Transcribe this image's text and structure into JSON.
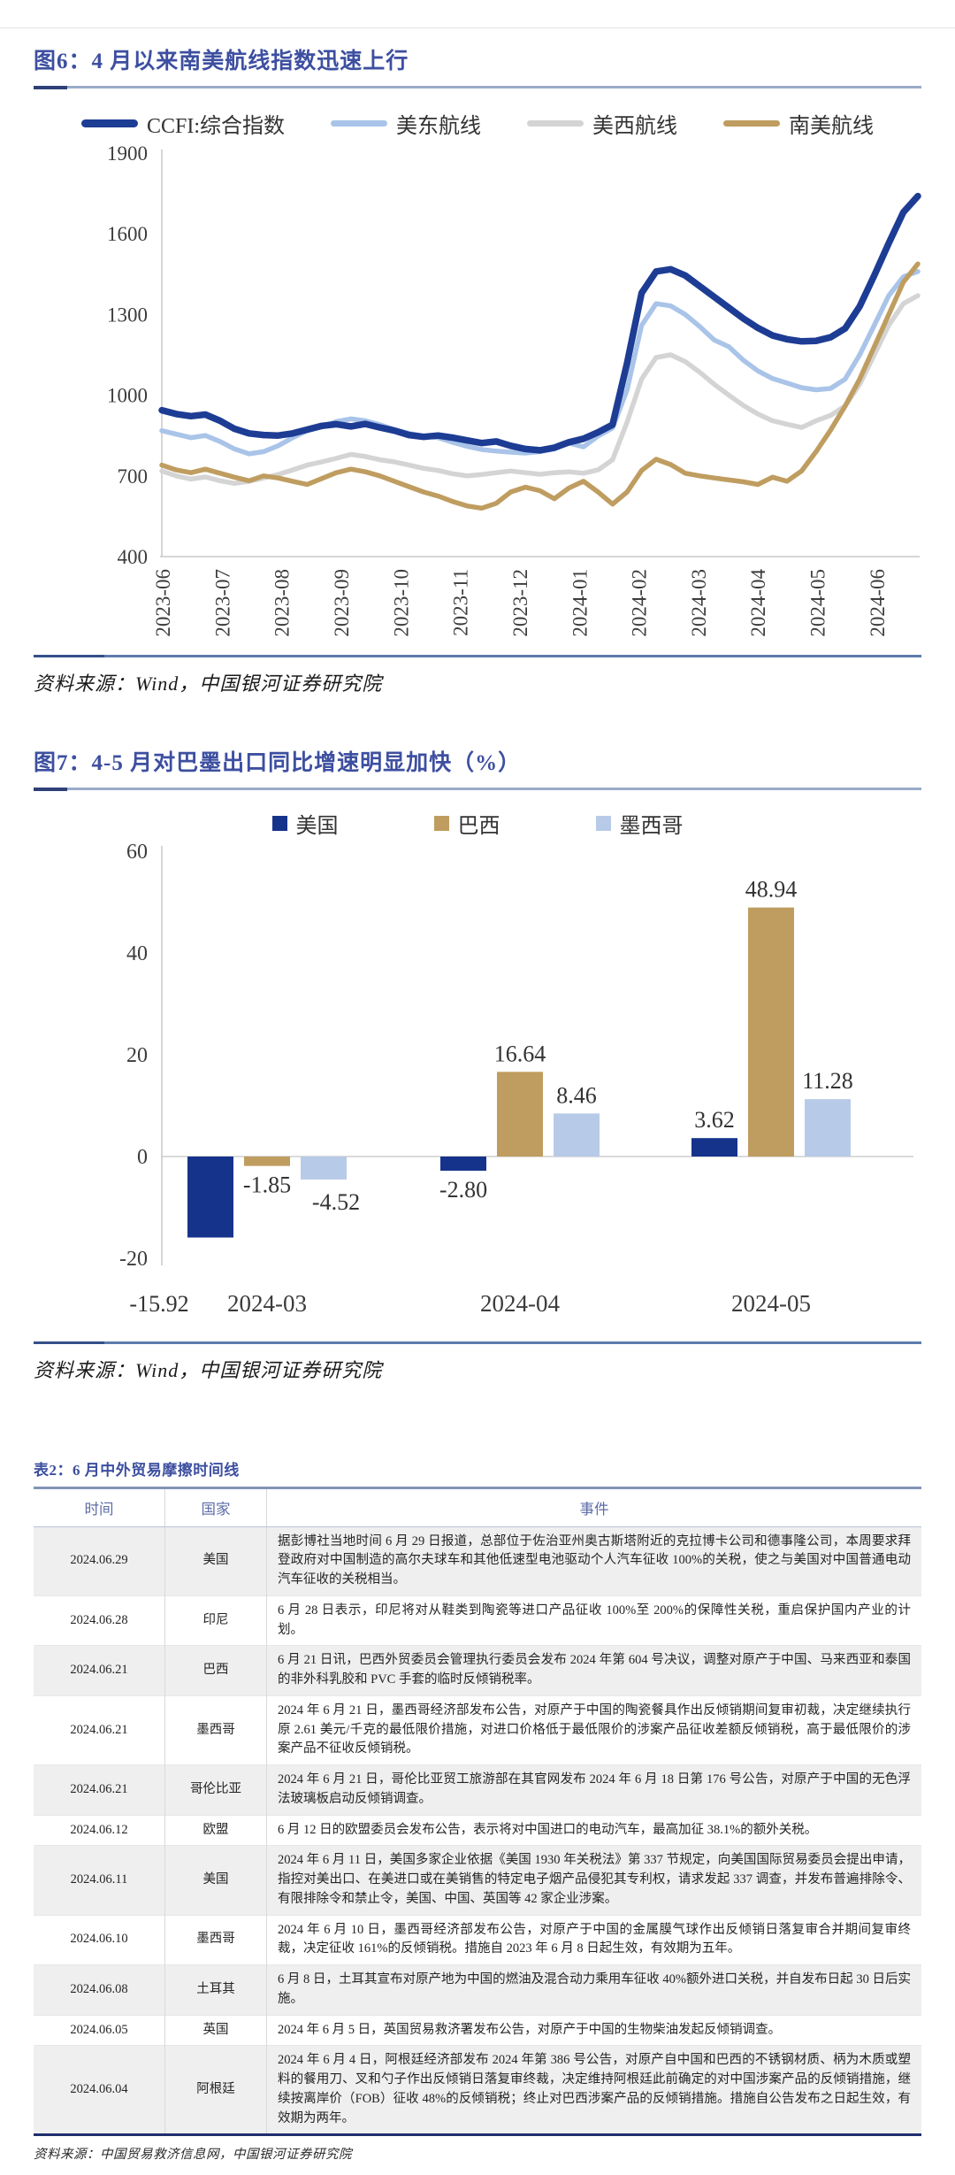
{
  "page": {
    "source_wind": "资料来源：Wind，中国银河证券研究院",
    "source_table": "资料来源：中国贸易救济信息网，中国银河证券研究院"
  },
  "chart_data": [
    {
      "type": "line",
      "title": "图6：4 月以来南美航线指数迅速上行",
      "x_tick_labels": [
        "2023-06",
        "2023-07",
        "2023-08",
        "2023-09",
        "2023-10",
        "2023-11",
        "2023-12",
        "2024-01",
        "2024-02",
        "2024-03",
        "2024-04",
        "2024-05",
        "2024-06"
      ],
      "x_axis_span_months": 12.7,
      "ylim": [
        400,
        1900
      ],
      "yticks": [
        1900,
        1600,
        1300,
        1000,
        700,
        400
      ],
      "grid": "off",
      "legend_position": "top",
      "series": [
        {
          "name": "美东航线",
          "color": "#a9c4e8",
          "values": [
            868,
            855,
            842,
            850,
            828,
            800,
            782,
            790,
            812,
            842,
            868,
            882,
            902,
            912,
            905,
            890,
            872,
            858,
            848,
            842,
            825,
            810,
            798,
            792,
            788,
            785,
            790,
            800,
            822,
            808,
            848,
            878,
            1020,
            1260,
            1340,
            1332,
            1300,
            1255,
            1205,
            1180,
            1130,
            1090,
            1062,
            1045,
            1028,
            1020,
            1025,
            1060,
            1150,
            1260,
            1370,
            1440,
            1460
          ]
        },
        {
          "name": "美西航线",
          "color": "#d4d4d4",
          "values": [
            718,
            700,
            688,
            696,
            682,
            672,
            680,
            692,
            705,
            722,
            740,
            752,
            765,
            780,
            772,
            760,
            752,
            740,
            728,
            720,
            708,
            700,
            705,
            712,
            718,
            712,
            706,
            712,
            715,
            710,
            722,
            760,
            900,
            1060,
            1140,
            1150,
            1125,
            1085,
            1040,
            1000,
            962,
            930,
            905,
            892,
            880,
            905,
            925,
            960,
            1040,
            1150,
            1260,
            1340,
            1370
          ]
        },
        {
          "name": "南美航线",
          "color": "#bf9d60",
          "values": [
            740,
            722,
            712,
            725,
            710,
            695,
            682,
            700,
            692,
            680,
            668,
            690,
            712,
            725,
            715,
            700,
            680,
            660,
            640,
            625,
            605,
            588,
            580,
            598,
            640,
            658,
            645,
            615,
            655,
            680,
            640,
            595,
            640,
            720,
            762,
            742,
            710,
            700,
            692,
            685,
            678,
            668,
            695,
            680,
            718,
            790,
            870,
            960,
            1060,
            1180,
            1300,
            1420,
            1488
          ]
        },
        {
          "name": "CCFI:综合指数",
          "color": "#1d3c94",
          "values": [
            944,
            930,
            922,
            928,
            905,
            875,
            858,
            852,
            850,
            858,
            872,
            886,
            892,
            884,
            893,
            880,
            868,
            852,
            845,
            850,
            842,
            832,
            822,
            828,
            812,
            800,
            795,
            805,
            825,
            838,
            862,
            890,
            1120,
            1380,
            1460,
            1468,
            1445,
            1405,
            1365,
            1325,
            1285,
            1250,
            1222,
            1208,
            1200,
            1202,
            1215,
            1248,
            1330,
            1445,
            1565,
            1680,
            1740
          ]
        }
      ],
      "legend_order": [
        "CCFI:综合指数",
        "美东航线",
        "美西航线",
        "南美航线"
      ]
    },
    {
      "type": "bar",
      "title": "图7：4-5 月对巴墨出口同比增速明显加快（%）",
      "categories": [
        "2024-03",
        "2024-04",
        "2024-05"
      ],
      "ylim": [
        -20,
        60
      ],
      "yticks": [
        60,
        40,
        20,
        0,
        -20
      ],
      "grid": "off",
      "legend_position": "top",
      "series": [
        {
          "name": "美国",
          "color": "#16338c",
          "values": [
            -15.92,
            -2.8,
            3.62
          ],
          "labels": [
            "-15.92",
            "-2.80",
            "3.62"
          ]
        },
        {
          "name": "巴西",
          "color": "#bf9d60",
          "values": [
            -1.85,
            16.64,
            48.94
          ],
          "labels": [
            "-1.85",
            "16.64",
            "48.94"
          ]
        },
        {
          "name": "墨西哥",
          "color": "#b7cbe8",
          "values": [
            -4.52,
            8.46,
            11.28
          ],
          "labels": [
            "-4.52",
            "8.46",
            "11.28"
          ]
        }
      ]
    }
  ],
  "table": {
    "title": "表2：6 月中外贸易摩擦时间线",
    "columns": [
      "时间",
      "国家",
      "事件"
    ],
    "rows": [
      {
        "date": "2024.06.29",
        "country": "美国",
        "event": "据彭博社当地时间 6 月 29 日报道，总部位于佐治亚州奥古斯塔附近的克拉博卡公司和德事隆公司，本周要求拜登政府对中国制造的高尔夫球车和其他低速型电池驱动个人汽车征收 100%的关税，使之与美国对中国普通电动汽车征收的关税相当。"
      },
      {
        "date": "2024.06.28",
        "country": "印尼",
        "event": "6 月 28 日表示，印尼将对从鞋类到陶瓷等进口产品征收 100%至 200%的保障性关税，重启保护国内产业的计划。"
      },
      {
        "date": "2024.06.21",
        "country": "巴西",
        "event": "6 月 21 日讯，巴西外贸委员会管理执行委员会发布 2024 年第 604 号决议，调整对原产于中国、马来西亚和泰国的非外科乳胶和 PVC 手套的临时反倾销税率。"
      },
      {
        "date": "2024.06.21",
        "country": "墨西哥",
        "event": "2024 年 6 月 21 日，墨西哥经济部发布公告，对原产于中国的陶瓷餐具作出反倾销期间复审初裁，决定继续执行原 2.61 美元/千克的最低限价措施，对进口价格低于最低限价的涉案产品征收差额反倾销税，高于最低限价的涉案产品不征收反倾销税。"
      },
      {
        "date": "2024.06.21",
        "country": "哥伦比亚",
        "event": "2024 年 6 月 21 日，哥伦比亚贸工旅游部在其官网发布 2024 年 6 月 18 日第 176 号公告，对原产于中国的无色浮法玻璃板启动反倾销调查。"
      },
      {
        "date": "2024.06.12",
        "country": "欧盟",
        "event": "6 月 12 日的欧盟委员会发布公告，表示将对中国进口的电动汽车，最高加征 38.1%的额外关税。"
      },
      {
        "date": "2024.06.11",
        "country": "美国",
        "event": "2024 年 6 月 11 日，美国多家企业依据《美国 1930 年关税法》第 337 节规定，向美国国际贸易委员会提出申请，指控对美出口、在美进口或在美销售的特定电子烟产品侵犯其专利权，请求发起 337 调查，并发布普遍排除令、有限排除令和禁止令，美国、中国、英国等 42 家企业涉案。"
      },
      {
        "date": "2024.06.10",
        "country": "墨西哥",
        "event": "2024 年 6 月 10 日，墨西哥经济部发布公告，对原产于中国的金属膜气球作出反倾销日落复审合并期间复审终裁，决定征收 161%的反倾销税。措施自 2023 年 6 月 8 日起生效，有效期为五年。"
      },
      {
        "date": "2024.06.08",
        "country": "土耳其",
        "event": "6 月 8 日，土耳其宣布对原产地为中国的燃油及混合动力乘用车征收 40%额外进口关税，并自发布日起 30 日后实施。"
      },
      {
        "date": "2024.06.05",
        "country": "英国",
        "event": "2024 年 6 月 5 日，英国贸易救济署发布公告，对原产于中国的生物柴油发起反倾销调查。"
      },
      {
        "date": "2024.06.04",
        "country": "阿根廷",
        "event": "2024 年 6 月 4 日，阿根廷经济部发布 2024 年第 386 号公告，对原产自中国和巴西的不锈钢材质、柄为木质或塑料的餐用刀、叉和勺子作出反倾销日落复审终裁，决定维持阿根廷此前确定的对中国涉案产品的反倾销措施，继续按离岸价（FOB）征收 48%的反倾销税；终止对巴西涉案产品的反倾销措施。措施自公告发布之日起生效，有效期为两年。"
      }
    ]
  }
}
